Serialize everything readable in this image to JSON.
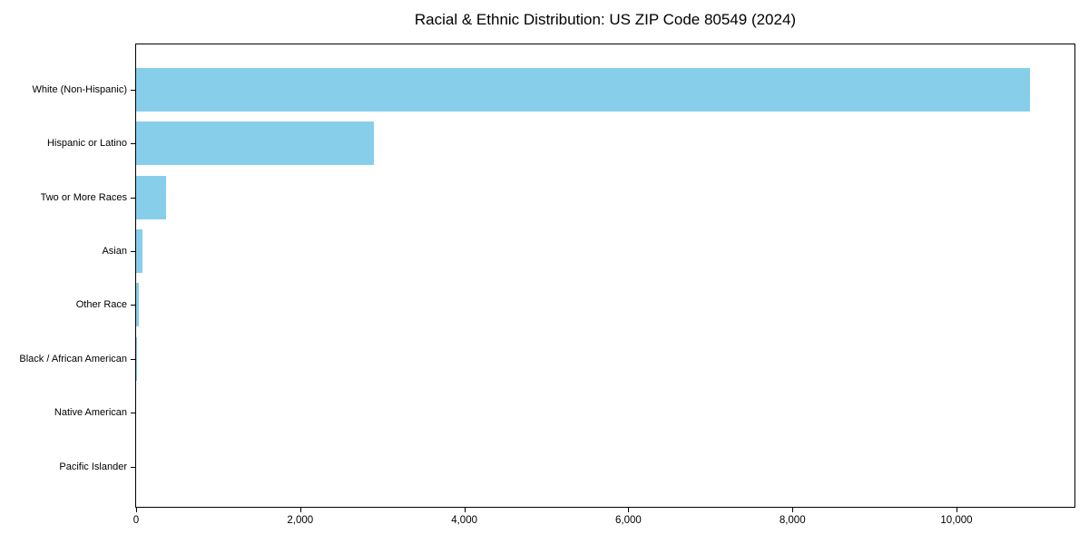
{
  "chart_data": {
    "type": "bar",
    "orientation": "horizontal",
    "title": "Racial & Ethnic Distribution: US ZIP Code 80549 (2024)",
    "categories": [
      "White (Non-Hispanic)",
      "Hispanic or Latino",
      "Two or More Races",
      "Asian",
      "Other Race",
      "Black / African American",
      "Native American",
      "Pacific Islander"
    ],
    "values": [
      10900,
      2900,
      360,
      80,
      30,
      10,
      0,
      0
    ],
    "xlabel": "",
    "ylabel": "",
    "xlim": [
      0,
      11460
    ],
    "xticks": [
      0,
      2000,
      4000,
      6000,
      8000,
      10000
    ],
    "xtick_labels": [
      "0",
      "2,000",
      "4,000",
      "6,000",
      "8,000",
      "10,000"
    ],
    "bar_color": "#87ceeb",
    "axis_color": "#000000",
    "text_color": "#000000",
    "background": "#ffffff",
    "grid": false,
    "legend": "none"
  }
}
